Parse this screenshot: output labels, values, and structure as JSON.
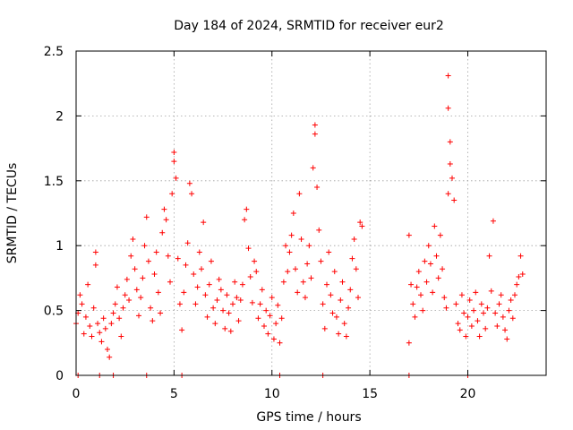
{
  "chart_data": {
    "type": "scatter",
    "title": "Day 184 of 2024, SRMTID for receiver eur2",
    "xlabel": "GPS time / hours",
    "ylabel": "SRMTID / TECUs",
    "xlim": [
      0,
      24
    ],
    "ylim": [
      0,
      2.5
    ],
    "xticks": [
      0,
      5,
      10,
      15,
      20
    ],
    "xtick_labels": [
      "0",
      "5",
      "10",
      "15",
      "20"
    ],
    "yticks": [
      0,
      0.5,
      1,
      1.5,
      2,
      2.5
    ],
    "ytick_labels": [
      "0",
      "0.5",
      "1",
      "1.5",
      "2",
      "2.5"
    ],
    "grid": true,
    "marker": "plus",
    "color": "#ff0000",
    "series": [
      {
        "name": "SRMTID",
        "points": [
          [
            0.0,
            0.4
          ],
          [
            0.1,
            0.48
          ],
          [
            0.2,
            0.62
          ],
          [
            0.3,
            0.55
          ],
          [
            0.4,
            0.32
          ],
          [
            0.5,
            0.45
          ],
          [
            0.6,
            0.7
          ],
          [
            0.7,
            0.38
          ],
          [
            0.8,
            0.3
          ],
          [
            0.9,
            0.52
          ],
          [
            1.0,
            0.95
          ],
          [
            1.0,
            0.85
          ],
          [
            1.1,
            0.4
          ],
          [
            1.2,
            0.33
          ],
          [
            1.3,
            0.26
          ],
          [
            1.4,
            0.44
          ],
          [
            1.5,
            0.36
          ],
          [
            1.6,
            0.2
          ],
          [
            1.7,
            0.14
          ],
          [
            1.8,
            0.4
          ],
          [
            1.9,
            0.48
          ],
          [
            2.0,
            0.55
          ],
          [
            2.1,
            0.68
          ],
          [
            2.2,
            0.44
          ],
          [
            2.3,
            0.3
          ],
          [
            2.4,
            0.52
          ],
          [
            2.5,
            0.62
          ],
          [
            2.6,
            0.74
          ],
          [
            2.7,
            0.58
          ],
          [
            2.8,
            0.92
          ],
          [
            2.9,
            1.05
          ],
          [
            3.0,
            0.82
          ],
          [
            3.1,
            0.66
          ],
          [
            3.2,
            0.46
          ],
          [
            3.3,
            0.6
          ],
          [
            3.4,
            0.75
          ],
          [
            3.5,
            1.0
          ],
          [
            3.6,
            1.22
          ],
          [
            3.7,
            0.88
          ],
          [
            3.8,
            0.52
          ],
          [
            3.9,
            0.42
          ],
          [
            4.0,
            0.78
          ],
          [
            4.1,
            0.95
          ],
          [
            4.2,
            0.64
          ],
          [
            4.3,
            0.48
          ],
          [
            4.4,
            1.1
          ],
          [
            4.5,
            1.28
          ],
          [
            4.6,
            1.2
          ],
          [
            4.7,
            0.92
          ],
          [
            4.8,
            0.72
          ],
          [
            4.9,
            1.4
          ],
          [
            5.0,
            1.72
          ],
          [
            5.0,
            1.65
          ],
          [
            5.1,
            1.52
          ],
          [
            5.2,
            0.9
          ],
          [
            5.3,
            0.55
          ],
          [
            5.4,
            0.35
          ],
          [
            5.5,
            0.64
          ],
          [
            5.6,
            0.85
          ],
          [
            5.7,
            1.02
          ],
          [
            5.8,
            1.48
          ],
          [
            5.9,
            1.4
          ],
          [
            6.0,
            0.78
          ],
          [
            6.1,
            0.55
          ],
          [
            6.2,
            0.68
          ],
          [
            6.3,
            0.95
          ],
          [
            6.4,
            0.82
          ],
          [
            6.5,
            1.18
          ],
          [
            6.6,
            0.62
          ],
          [
            6.7,
            0.45
          ],
          [
            6.8,
            0.7
          ],
          [
            6.9,
            0.88
          ],
          [
            7.0,
            0.52
          ],
          [
            7.1,
            0.4
          ],
          [
            7.2,
            0.58
          ],
          [
            7.3,
            0.74
          ],
          [
            7.4,
            0.66
          ],
          [
            7.5,
            0.5
          ],
          [
            7.6,
            0.36
          ],
          [
            7.7,
            0.62
          ],
          [
            7.8,
            0.48
          ],
          [
            7.9,
            0.34
          ],
          [
            8.0,
            0.55
          ],
          [
            8.1,
            0.72
          ],
          [
            8.2,
            0.6
          ],
          [
            8.3,
            0.42
          ],
          [
            8.4,
            0.58
          ],
          [
            8.5,
            0.7
          ],
          [
            8.6,
            1.2
          ],
          [
            8.7,
            1.28
          ],
          [
            8.8,
            0.98
          ],
          [
            8.9,
            0.76
          ],
          [
            9.0,
            0.56
          ],
          [
            9.1,
            0.88
          ],
          [
            9.2,
            0.8
          ],
          [
            9.3,
            0.44
          ],
          [
            9.4,
            0.55
          ],
          [
            9.5,
            0.66
          ],
          [
            9.6,
            0.38
          ],
          [
            9.7,
            0.5
          ],
          [
            9.8,
            0.32
          ],
          [
            9.9,
            0.46
          ],
          [
            10.0,
            0.6
          ],
          [
            10.1,
            0.28
          ],
          [
            10.2,
            0.4
          ],
          [
            10.3,
            0.54
          ],
          [
            10.4,
            0.25
          ],
          [
            10.5,
            0.44
          ],
          [
            10.6,
            0.72
          ],
          [
            10.7,
            1.0
          ],
          [
            10.8,
            0.8
          ],
          [
            10.9,
            0.95
          ],
          [
            11.0,
            1.08
          ],
          [
            11.1,
            1.25
          ],
          [
            11.2,
            0.82
          ],
          [
            11.3,
            0.64
          ],
          [
            11.4,
            1.4
          ],
          [
            11.5,
            1.05
          ],
          [
            11.6,
            0.72
          ],
          [
            11.7,
            0.6
          ],
          [
            11.8,
            0.86
          ],
          [
            11.9,
            1.0
          ],
          [
            12.0,
            0.75
          ],
          [
            12.1,
            1.6
          ],
          [
            12.2,
            1.86
          ],
          [
            12.2,
            1.93
          ],
          [
            12.3,
            1.45
          ],
          [
            12.4,
            1.12
          ],
          [
            12.5,
            0.88
          ],
          [
            12.6,
            0.55
          ],
          [
            12.7,
            0.36
          ],
          [
            12.8,
            0.7
          ],
          [
            12.9,
            0.95
          ],
          [
            13.0,
            0.62
          ],
          [
            13.1,
            0.48
          ],
          [
            13.2,
            0.8
          ],
          [
            13.3,
            0.45
          ],
          [
            13.4,
            0.32
          ],
          [
            13.5,
            0.58
          ],
          [
            13.6,
            0.72
          ],
          [
            13.7,
            0.4
          ],
          [
            13.8,
            0.3
          ],
          [
            13.9,
            0.52
          ],
          [
            14.0,
            0.66
          ],
          [
            14.1,
            0.9
          ],
          [
            14.2,
            1.05
          ],
          [
            14.3,
            0.82
          ],
          [
            14.4,
            0.6
          ],
          [
            14.5,
            1.18
          ],
          [
            14.6,
            1.15
          ],
          [
            17.0,
            0.25
          ],
          [
            17.0,
            1.08
          ],
          [
            17.1,
            0.7
          ],
          [
            17.2,
            0.55
          ],
          [
            17.3,
            0.45
          ],
          [
            17.4,
            0.68
          ],
          [
            17.5,
            0.8
          ],
          [
            17.6,
            0.62
          ],
          [
            17.7,
            0.5
          ],
          [
            17.8,
            0.88
          ],
          [
            17.9,
            0.72
          ],
          [
            18.0,
            1.0
          ],
          [
            18.1,
            0.86
          ],
          [
            18.2,
            0.64
          ],
          [
            18.3,
            1.15
          ],
          [
            18.4,
            0.92
          ],
          [
            18.5,
            0.75
          ],
          [
            18.6,
            1.08
          ],
          [
            18.7,
            0.82
          ],
          [
            18.8,
            0.6
          ],
          [
            18.9,
            0.52
          ],
          [
            19.0,
            1.4
          ],
          [
            19.0,
            2.31
          ],
          [
            19.0,
            2.06
          ],
          [
            19.1,
            1.8
          ],
          [
            19.1,
            1.63
          ],
          [
            19.2,
            1.52
          ],
          [
            19.3,
            1.35
          ],
          [
            19.4,
            0.55
          ],
          [
            19.5,
            0.4
          ],
          [
            19.6,
            0.35
          ],
          [
            19.7,
            0.62
          ],
          [
            19.8,
            0.48
          ],
          [
            19.9,
            0.3
          ],
          [
            20.0,
            0.45
          ],
          [
            20.1,
            0.58
          ],
          [
            20.2,
            0.38
          ],
          [
            20.3,
            0.5
          ],
          [
            20.4,
            0.64
          ],
          [
            20.5,
            0.42
          ],
          [
            20.6,
            0.3
          ],
          [
            20.7,
            0.55
          ],
          [
            20.8,
            0.48
          ],
          [
            20.9,
            0.36
          ],
          [
            21.0,
            0.52
          ],
          [
            21.1,
            0.92
          ],
          [
            21.2,
            0.65
          ],
          [
            21.3,
            1.19
          ],
          [
            21.4,
            0.48
          ],
          [
            21.5,
            0.38
          ],
          [
            21.6,
            0.55
          ],
          [
            21.7,
            0.62
          ],
          [
            21.8,
            0.45
          ],
          [
            21.9,
            0.35
          ],
          [
            22.0,
            0.28
          ],
          [
            22.1,
            0.5
          ],
          [
            22.2,
            0.58
          ],
          [
            22.3,
            0.44
          ],
          [
            22.4,
            0.62
          ],
          [
            22.5,
            0.7
          ],
          [
            22.6,
            0.76
          ],
          [
            22.7,
            0.92
          ],
          [
            22.8,
            0.78
          ]
        ]
      }
    ],
    "zero_markers_x": [
      0.1,
      1.2,
      1.9,
      3.6,
      5.4,
      10.4,
      12.6,
      17.0,
      20.0
    ]
  }
}
